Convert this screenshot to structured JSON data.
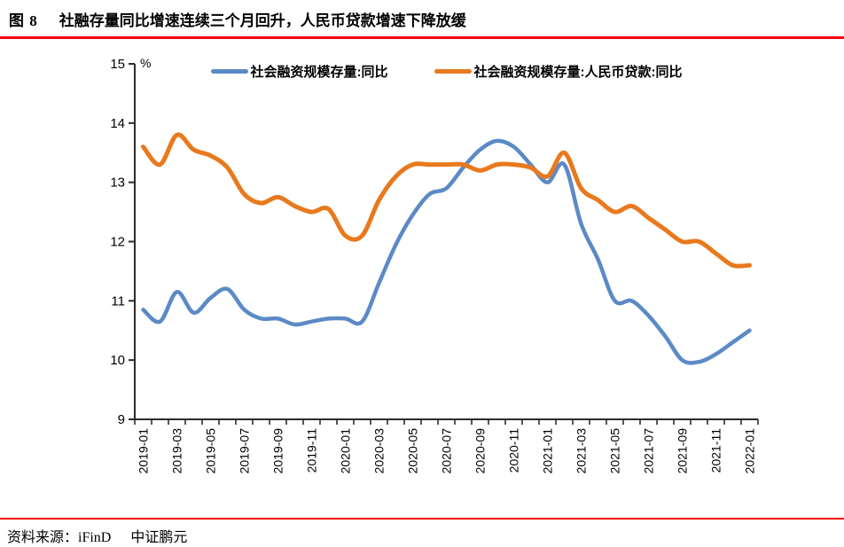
{
  "page": {
    "figure_label": "图 8",
    "title": "社融存量同比增速连续三个月回升，人民币贷款增速下降放缓",
    "source_label": "资料来源：iFinD",
    "source_org": "中证鹏元",
    "accent_rule_color": "#f40000"
  },
  "chart_data": {
    "type": "line",
    "smoothed": true,
    "grid": false,
    "legend_position": "top-center",
    "unit_label": "%",
    "ylim": [
      9,
      15
    ],
    "y_ticks": [
      9,
      10,
      11,
      12,
      13,
      14,
      15
    ],
    "x_label_every": 2,
    "x": [
      "2019-01",
      "2019-02",
      "2019-03",
      "2019-04",
      "2019-05",
      "2019-06",
      "2019-07",
      "2019-08",
      "2019-09",
      "2019-10",
      "2019-11",
      "2019-12",
      "2020-01",
      "2020-02",
      "2020-03",
      "2020-04",
      "2020-05",
      "2020-06",
      "2020-07",
      "2020-08",
      "2020-09",
      "2020-10",
      "2020-11",
      "2020-12",
      "2021-01",
      "2021-02",
      "2021-03",
      "2021-04",
      "2021-05",
      "2021-06",
      "2021-07",
      "2021-08",
      "2021-09",
      "2021-10",
      "2021-11",
      "2021-12",
      "2022-01"
    ],
    "series": [
      {
        "name": "社会融资规模存量:同比",
        "color": "#5b8ac6",
        "line_width": 4.5,
        "values": [
          10.85,
          10.65,
          11.15,
          10.8,
          11.05,
          11.2,
          10.85,
          10.7,
          10.7,
          10.6,
          10.65,
          10.7,
          10.7,
          10.65,
          11.3,
          11.95,
          12.45,
          12.8,
          12.9,
          13.25,
          13.55,
          13.7,
          13.6,
          13.3,
          13.0,
          13.3,
          12.3,
          11.7,
          11.0,
          11.0,
          10.75,
          10.4,
          10.0,
          9.97,
          10.1,
          10.3,
          10.5
        ]
      },
      {
        "name": "社会融资规模存量:人民币贷款:同比",
        "color": "#e8791d",
        "line_width": 5,
        "values": [
          13.6,
          13.3,
          13.8,
          13.55,
          13.45,
          13.25,
          12.8,
          12.65,
          12.75,
          12.6,
          12.5,
          12.55,
          12.1,
          12.1,
          12.7,
          13.1,
          13.3,
          13.3,
          13.3,
          13.3,
          13.2,
          13.3,
          13.3,
          13.25,
          13.1,
          13.5,
          12.9,
          12.7,
          12.5,
          12.6,
          12.4,
          12.2,
          12.0,
          12.0,
          11.8,
          11.6,
          11.6
        ]
      }
    ]
  }
}
